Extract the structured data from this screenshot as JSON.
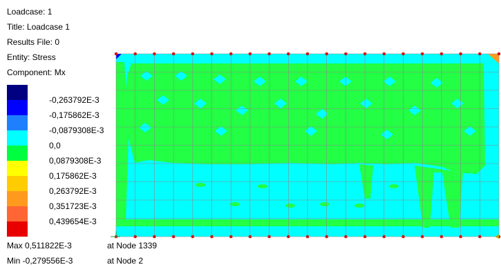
{
  "info": {
    "loadcase": "Loadcase: 1",
    "title": "Title: Loadcase 1",
    "results_file": "Results File: 0",
    "entity": "Entity: Stress",
    "component": "Component: Mx"
  },
  "legend": {
    "colors": [
      "#000080",
      "#0000ff",
      "#1e7fff",
      "#00ffff",
      "#00ff40",
      "#ffff00",
      "#ffcc00",
      "#ff9a1e",
      "#ff6633",
      "#e80000"
    ],
    "labels": [
      "-0,263792E-3",
      "-0,175862E-3",
      "-0,0879308E-3",
      "0,0",
      "0,0879308E-3",
      "0,175862E-3",
      "0,263792E-3",
      "0,351723E-3",
      "0,439654E-3"
    ]
  },
  "stats": {
    "max_value": "Max 0,511822E-3",
    "max_node": "at Node 1339",
    "min_value": "Min -0,279556E-3",
    "min_node": "at Node 2"
  },
  "plot": {
    "field_colors": {
      "base": "#22ff44",
      "cyan": "#00ffff",
      "corner_hot": "#ff9a1e",
      "corner_cold": "#0000ff"
    },
    "node_color": "#d01818",
    "grid_color": "#8a8a8a"
  }
}
